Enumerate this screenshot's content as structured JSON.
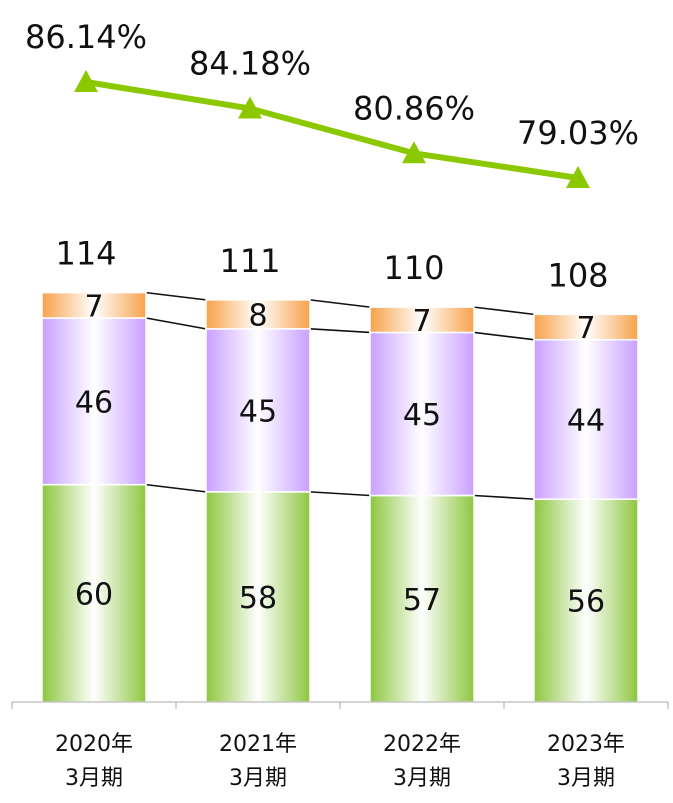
{
  "chart_data": {
    "type": "bar",
    "stacked": true,
    "categories": [
      [
        "2020年",
        "3月期"
      ],
      [
        "2021年",
        "3月期"
      ],
      [
        "2022年",
        "3月期"
      ],
      [
        "2023年",
        "3月期"
      ]
    ],
    "series": [
      {
        "values": [
          60,
          58,
          57,
          56
        ],
        "color": "#8dc63f"
      },
      {
        "values": [
          46,
          45,
          45,
          44
        ],
        "color": "#c9a0ff"
      },
      {
        "values": [
          7,
          8,
          7,
          7
        ],
        "color": "#f7a24a"
      }
    ],
    "totals": [
      "114",
      "111",
      "110",
      "108"
    ],
    "line_series": {
      "values": [
        86.14,
        84.18,
        80.86,
        79.03
      ],
      "labels": [
        "86.14%",
        "84.18%",
        "80.86%",
        "79.03%"
      ],
      "color": "#8cc800"
    },
    "ylim": [
      0,
      114
    ],
    "connector_lines": true
  }
}
